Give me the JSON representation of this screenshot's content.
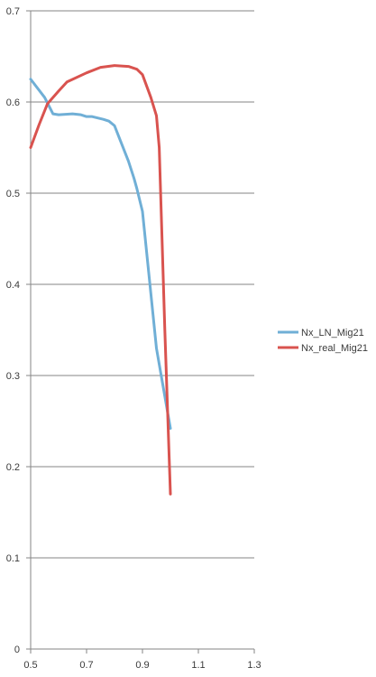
{
  "chart_data": {
    "type": "line",
    "title": "",
    "xlabel": "",
    "ylabel": "",
    "xlim": [
      0.5,
      1.3
    ],
    "ylim": [
      0,
      0.7
    ],
    "x_ticks": [
      "0.5",
      "0.7",
      "0.9",
      "1.1",
      "1.3"
    ],
    "y_ticks": [
      "0",
      "0.1",
      "0.2",
      "0.3",
      "0.4",
      "0.5",
      "0.6",
      "0.7"
    ],
    "grid": "horizontal",
    "legend_position": "right",
    "series": [
      {
        "name": "Nx_LN_Mig21",
        "color": "#70afd6",
        "points": [
          [
            0.5,
            0.625
          ],
          [
            0.55,
            0.605
          ],
          [
            0.58,
            0.587
          ],
          [
            0.6,
            0.586
          ],
          [
            0.65,
            0.587
          ],
          [
            0.68,
            0.586
          ],
          [
            0.7,
            0.584
          ],
          [
            0.72,
            0.584
          ],
          [
            0.76,
            0.581
          ],
          [
            0.78,
            0.579
          ],
          [
            0.8,
            0.574
          ],
          [
            0.85,
            0.535
          ],
          [
            0.87,
            0.516
          ],
          [
            0.88,
            0.505
          ],
          [
            0.9,
            0.48
          ],
          [
            0.92,
            0.42
          ],
          [
            0.95,
            0.33
          ],
          [
            1.0,
            0.242
          ]
        ]
      },
      {
        "name": "Nx_real_Mig21",
        "color": "#d9534f",
        "points": [
          [
            0.5,
            0.55
          ],
          [
            0.53,
            0.575
          ],
          [
            0.56,
            0.598
          ],
          [
            0.6,
            0.612
          ],
          [
            0.63,
            0.622
          ],
          [
            0.7,
            0.632
          ],
          [
            0.75,
            0.638
          ],
          [
            0.8,
            0.64
          ],
          [
            0.85,
            0.639
          ],
          [
            0.88,
            0.636
          ],
          [
            0.9,
            0.63
          ],
          [
            0.93,
            0.605
          ],
          [
            0.95,
            0.585
          ],
          [
            0.96,
            0.55
          ],
          [
            0.97,
            0.45
          ],
          [
            0.98,
            0.35
          ],
          [
            0.99,
            0.26
          ],
          [
            1.0,
            0.17
          ]
        ]
      }
    ]
  }
}
